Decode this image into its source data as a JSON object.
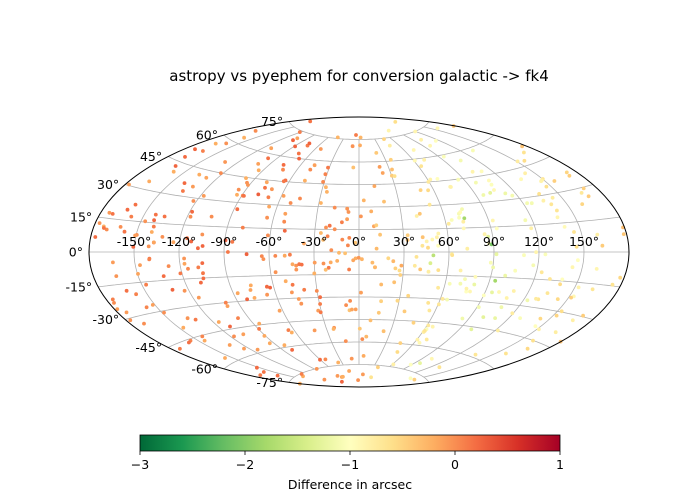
{
  "chart_data": {
    "type": "scatter",
    "projection": "aitoff",
    "title": "astropy vs pyephem for conversion galactic -> fk4",
    "grid": true,
    "lon_ticks": [
      -150,
      -120,
      -90,
      -60,
      -30,
      0,
      30,
      60,
      90,
      120,
      150
    ],
    "lon_tick_labels": [
      "-150°",
      "-120°",
      "-90°",
      "-60°",
      "-30°",
      "0°",
      "30°",
      "60°",
      "90°",
      "120°",
      "150°"
    ],
    "lat_ticks": [
      -75,
      -60,
      -45,
      -30,
      -15,
      0,
      15,
      30,
      45,
      60,
      75
    ],
    "lat_tick_labels": [
      "-75°",
      "-60°",
      "-45°",
      "-30°",
      "-15°",
      "0°",
      "15°",
      "30°",
      "45°",
      "60°",
      "75°"
    ],
    "lon_range": [
      -180,
      180
    ],
    "lat_range": [
      -90,
      90
    ],
    "colormap": "RdYlGn_r",
    "value_range": [
      -3,
      1
    ],
    "point_color_trend": [
      {
        "lon": -180,
        "value": 0.0
      },
      {
        "lon": -60,
        "value": 0.05
      },
      {
        "lon": 0,
        "value": -0.15
      },
      {
        "lon": 30,
        "value": -0.4
      },
      {
        "lon": 60,
        "value": -0.85
      },
      {
        "lon": 90,
        "value": -1.1
      },
      {
        "lon": 120,
        "value": -0.95
      },
      {
        "lon": 180,
        "value": -0.5
      }
    ],
    "point_count": 500,
    "colorbar": {
      "label": "Difference in arcsec",
      "ticks": [
        -3,
        -2,
        -1,
        0,
        1
      ],
      "tick_labels": [
        "−3",
        "−2",
        "−1",
        "0",
        "1"
      ],
      "orientation": "horizontal",
      "placement": "bottom"
    }
  }
}
